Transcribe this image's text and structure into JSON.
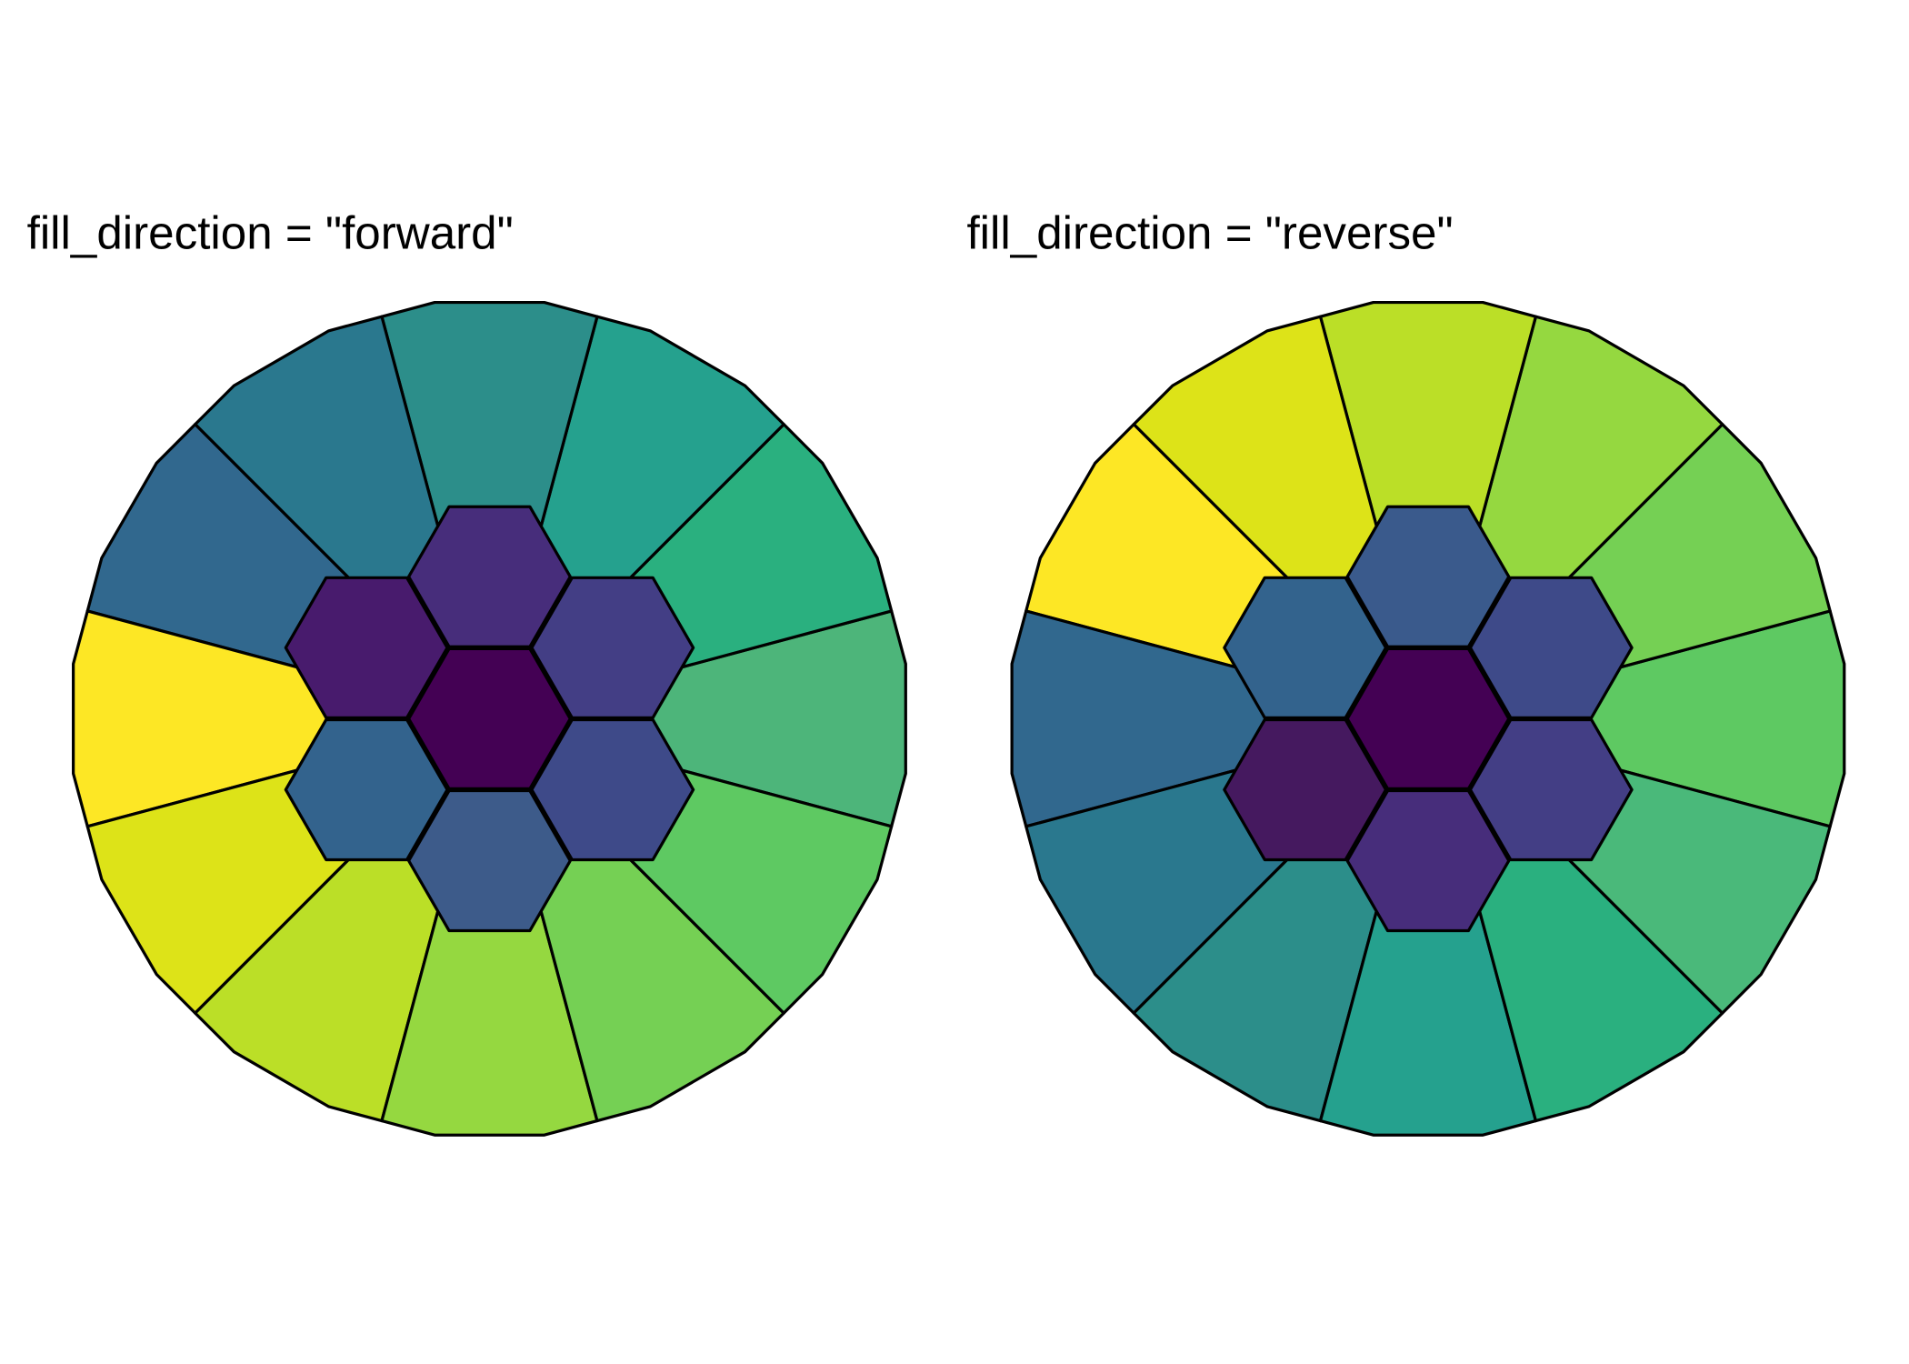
{
  "panels": [
    {
      "title": "fill_direction = \"forward\""
    },
    {
      "title": "fill_direction = \"reverse\""
    }
  ]
}
